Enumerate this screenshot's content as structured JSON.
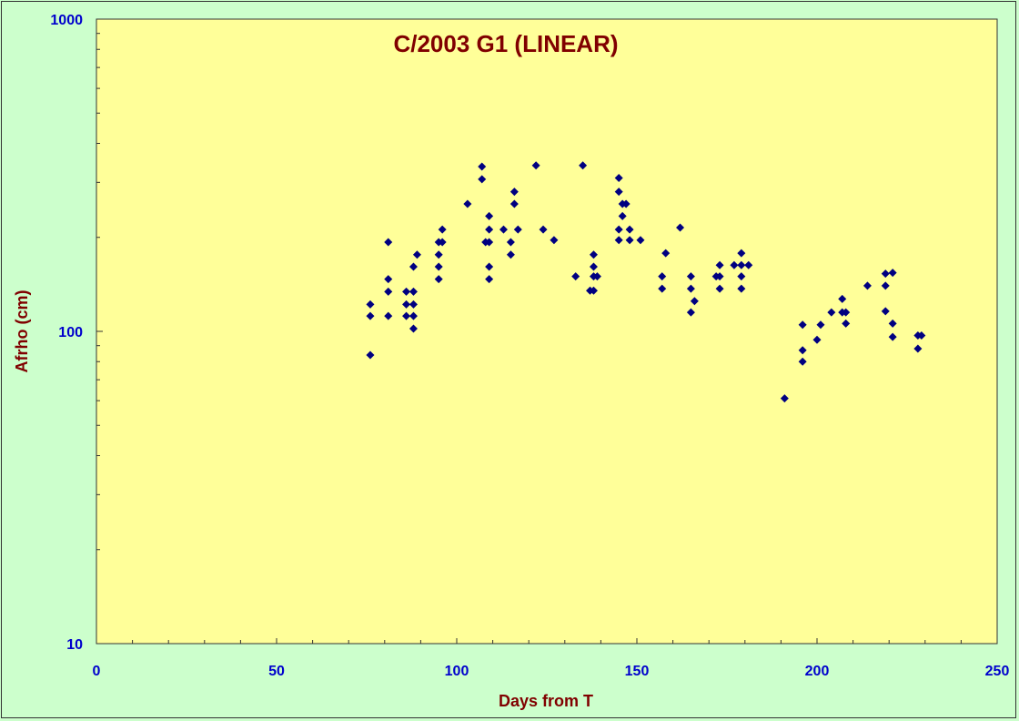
{
  "chart_data": {
    "type": "scatter",
    "title": "C/2003 G1 (LINEAR)",
    "xlabel": "Days from T",
    "ylabel": "Afrho (cm)",
    "xlim": [
      0,
      250
    ],
    "ylim": [
      10,
      1000
    ],
    "yscale": "log",
    "xticks": [
      0,
      50,
      100,
      150,
      200,
      250
    ],
    "yticks": [
      10,
      100,
      1000
    ],
    "grid": false,
    "legend": "none",
    "colors": {
      "plot_background": "#ffff99",
      "page_background": "#ccffcc",
      "marker": "#000080",
      "tick_labels": "#0000cc",
      "titles": "#800000"
    },
    "marker_shape": "diamond",
    "points": [
      [
        76,
        122
      ],
      [
        76,
        112
      ],
      [
        76,
        84
      ],
      [
        81,
        193
      ],
      [
        81,
        147
      ],
      [
        81,
        134
      ],
      [
        81,
        112
      ],
      [
        86,
        134
      ],
      [
        86,
        122
      ],
      [
        86,
        112
      ],
      [
        88,
        161
      ],
      [
        88,
        134
      ],
      [
        88,
        122
      ],
      [
        88,
        112
      ],
      [
        88,
        102
      ],
      [
        89,
        176
      ],
      [
        95,
        193
      ],
      [
        95,
        176
      ],
      [
        95,
        161
      ],
      [
        95,
        147
      ],
      [
        96,
        212
      ],
      [
        96,
        193
      ],
      [
        103,
        256
      ],
      [
        107,
        337
      ],
      [
        107,
        307
      ],
      [
        108,
        193
      ],
      [
        109,
        234
      ],
      [
        109,
        212
      ],
      [
        109,
        193
      ],
      [
        109,
        161
      ],
      [
        109,
        147
      ],
      [
        113,
        212
      ],
      [
        115,
        193
      ],
      [
        115,
        176
      ],
      [
        116,
        280
      ],
      [
        116,
        256
      ],
      [
        117,
        212
      ],
      [
        122,
        340
      ],
      [
        124,
        212
      ],
      [
        127,
        196
      ],
      [
        133,
        150
      ],
      [
        135,
        340
      ],
      [
        137,
        135
      ],
      [
        138,
        176
      ],
      [
        138,
        161
      ],
      [
        138,
        150
      ],
      [
        138,
        135
      ],
      [
        139,
        150
      ],
      [
        145,
        310
      ],
      [
        145,
        280
      ],
      [
        145,
        212
      ],
      [
        145,
        196
      ],
      [
        146,
        256
      ],
      [
        146,
        234
      ],
      [
        147,
        256
      ],
      [
        148,
        212
      ],
      [
        148,
        196
      ],
      [
        151,
        196
      ],
      [
        157,
        150
      ],
      [
        157,
        137
      ],
      [
        158,
        178
      ],
      [
        162,
        215
      ],
      [
        165,
        150
      ],
      [
        165,
        137
      ],
      [
        165,
        115
      ],
      [
        166,
        125
      ],
      [
        172,
        150
      ],
      [
        173,
        163
      ],
      [
        173,
        150
      ],
      [
        173,
        137
      ],
      [
        177,
        163
      ],
      [
        179,
        178
      ],
      [
        179,
        163
      ],
      [
        179,
        150
      ],
      [
        179,
        137
      ],
      [
        181,
        163
      ],
      [
        191,
        61
      ],
      [
        196,
        105
      ],
      [
        196,
        87
      ],
      [
        196,
        80
      ],
      [
        200,
        94
      ],
      [
        201,
        105
      ],
      [
        204,
        115
      ],
      [
        207,
        127
      ],
      [
        207,
        115
      ],
      [
        208,
        115
      ],
      [
        208,
        106
      ],
      [
        214,
        140
      ],
      [
        219,
        153
      ],
      [
        219,
        140
      ],
      [
        219,
        116
      ],
      [
        221,
        154
      ],
      [
        221,
        106
      ],
      [
        221,
        96
      ],
      [
        228,
        97
      ],
      [
        228,
        88
      ],
      [
        229,
        97
      ]
    ]
  }
}
